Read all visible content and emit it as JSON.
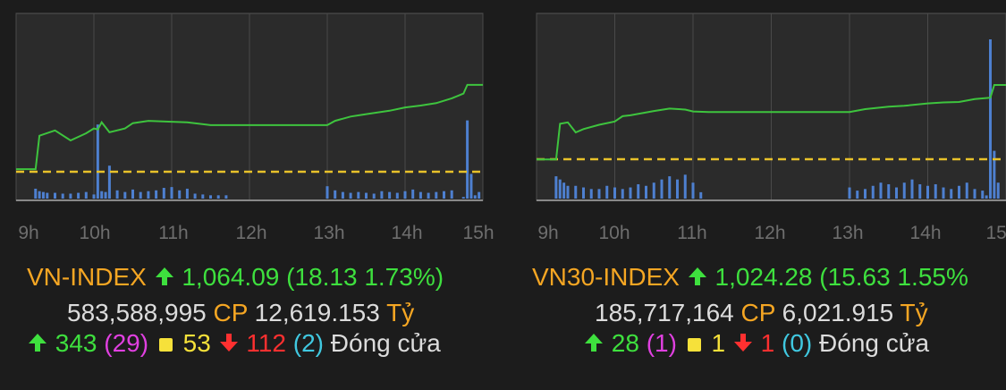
{
  "colors": {
    "background": "#1c1c1c",
    "plot_bg": "#2b2b2b",
    "grid": "#4a4a4a",
    "price_line": "#3ec43e",
    "reference_line": "#e8c22a",
    "volume_bar": "#4e80d0",
    "up": "#3ee03e",
    "down": "#ff3030",
    "unchanged": "#f6e13a",
    "ceiling": "#e040e0",
    "floor": "#40c8e0",
    "label_orange": "#f5a623"
  },
  "chart_data": [
    {
      "type": "line",
      "index_name": "VN-INDEX",
      "x_tick_labels": [
        "9h",
        "10h",
        "11h",
        "12h",
        "13h",
        "14h",
        "15h"
      ],
      "x_range_hours": [
        9,
        15
      ],
      "grid": true,
      "reference_value": 1045.96,
      "price_series": {
        "x": [
          9.0,
          9.25,
          9.3,
          9.5,
          9.7,
          9.9,
          10.0,
          10.05,
          10.1,
          10.2,
          10.4,
          10.5,
          10.7,
          11.0,
          11.2,
          11.5,
          12.0,
          12.5,
          13.0,
          13.1,
          13.3,
          13.5,
          13.8,
          14.0,
          14.2,
          14.4,
          14.6,
          14.75,
          14.8,
          14.85,
          15.0
        ],
        "y": [
          1046.5,
          1046.5,
          1053.5,
          1054.6,
          1052.5,
          1054.0,
          1055.0,
          1054.8,
          1056.3,
          1054.2,
          1055.0,
          1056.1,
          1056.6,
          1056.4,
          1056.3,
          1055.7,
          1055.7,
          1055.7,
          1055.7,
          1056.6,
          1057.5,
          1058.0,
          1058.7,
          1059.4,
          1059.8,
          1060.3,
          1061.3,
          1062.3,
          1064.1,
          1064.1,
          1064.1
        ]
      },
      "volume_series": {
        "x": [
          9.25,
          9.3,
          9.35,
          9.4,
          9.5,
          9.6,
          9.7,
          9.8,
          9.9,
          10.0,
          10.05,
          10.1,
          10.15,
          10.2,
          10.3,
          10.4,
          10.5,
          10.6,
          10.7,
          10.8,
          10.9,
          11.0,
          11.1,
          11.2,
          11.3,
          11.4,
          11.5,
          11.6,
          11.7,
          13.0,
          13.1,
          13.2,
          13.3,
          13.4,
          13.5,
          13.6,
          13.7,
          13.8,
          13.9,
          14.0,
          14.1,
          14.2,
          14.3,
          14.4,
          14.5,
          14.6,
          14.75,
          14.8,
          14.85,
          14.9,
          14.95
        ],
        "y": [
          0.12,
          0.09,
          0.08,
          0.07,
          0.07,
          0.06,
          0.06,
          0.07,
          0.08,
          0.05,
          0.9,
          0.09,
          0.08,
          0.4,
          0.1,
          0.08,
          0.11,
          0.08,
          0.09,
          0.1,
          0.13,
          0.14,
          0.1,
          0.12,
          0.06,
          0.05,
          0.04,
          0.04,
          0.04,
          0.15,
          0.1,
          0.08,
          0.07,
          0.08,
          0.07,
          0.06,
          0.09,
          0.08,
          0.07,
          0.09,
          0.11,
          0.08,
          0.07,
          0.08,
          0.09,
          0.1,
          0.02,
          0.95,
          0.3,
          0.04,
          0.08
        ]
      },
      "summary": {
        "name": "VN-INDEX",
        "value": "1,064.09",
        "change": "(18.13",
        "change_pct": "1.73%)",
        "volume": "583,588,995",
        "volume_unit": "CP",
        "turnover": "12,619.153",
        "turnover_unit": "Tỷ",
        "advancers": "343",
        "ceiling": "(29)",
        "unchanged": "53",
        "decliners": "112",
        "floor": "(2)",
        "status": "Đóng cửa"
      }
    },
    {
      "type": "line",
      "index_name": "VN30-INDEX",
      "x_tick_labels": [
        "9h",
        "10h",
        "11h",
        "12h",
        "13h",
        "14h",
        "15h"
      ],
      "x_range_hours": [
        9,
        15
      ],
      "grid": true,
      "reference_value": 1008.65,
      "price_series": {
        "x": [
          9.0,
          9.25,
          9.3,
          9.4,
          9.5,
          9.6,
          9.8,
          10.0,
          10.1,
          10.2,
          10.5,
          10.7,
          10.9,
          11.0,
          11.2,
          11.5,
          12.0,
          12.5,
          13.0,
          13.2,
          13.5,
          13.7,
          14.0,
          14.2,
          14.4,
          14.6,
          14.8,
          14.85,
          15.0
        ],
        "y": [
          1008.6,
          1008.6,
          1016.1,
          1016.4,
          1014.3,
          1015.0,
          1015.9,
          1016.6,
          1017.7,
          1017.9,
          1018.8,
          1019.3,
          1019.1,
          1018.7,
          1018.6,
          1018.6,
          1018.6,
          1018.6,
          1018.6,
          1019.2,
          1019.7,
          1019.9,
          1020.4,
          1020.6,
          1020.7,
          1021.3,
          1021.6,
          1024.28,
          1024.28
        ]
      },
      "volume_series": {
        "x": [
          9.25,
          9.3,
          9.35,
          9.4,
          9.5,
          9.6,
          9.7,
          9.8,
          9.9,
          10.0,
          10.1,
          10.2,
          10.3,
          10.4,
          10.5,
          10.6,
          10.7,
          10.8,
          10.9,
          11.0,
          11.1,
          13.0,
          13.1,
          13.2,
          13.3,
          13.4,
          13.5,
          13.6,
          13.7,
          13.8,
          13.9,
          14.0,
          14.1,
          14.2,
          14.3,
          14.4,
          14.5,
          14.6,
          14.7,
          14.75,
          14.8,
          14.85,
          14.9
        ],
        "y": [
          0.14,
          0.12,
          0.1,
          0.08,
          0.08,
          0.07,
          0.06,
          0.06,
          0.08,
          0.07,
          0.06,
          0.07,
          0.09,
          0.08,
          0.1,
          0.12,
          0.14,
          0.12,
          0.15,
          0.1,
          0.04,
          0.07,
          0.05,
          0.06,
          0.08,
          0.1,
          0.09,
          0.07,
          0.1,
          0.12,
          0.09,
          0.08,
          0.09,
          0.07,
          0.06,
          0.08,
          0.1,
          0.06,
          0.05,
          0.02,
          1.0,
          0.3,
          0.1
        ]
      },
      "summary": {
        "name": "VN30-INDEX",
        "value": "1,024.28",
        "change": "(15.63",
        "change_pct": "1.55%",
        "volume": "185,717,164",
        "volume_unit": "CP",
        "turnover": "6,021.915",
        "turnover_unit": "Tỷ",
        "advancers": "28",
        "ceiling": "(1)",
        "unchanged": "1",
        "decliners": "1",
        "floor": "(0)",
        "status": "Đóng cửa"
      }
    }
  ]
}
